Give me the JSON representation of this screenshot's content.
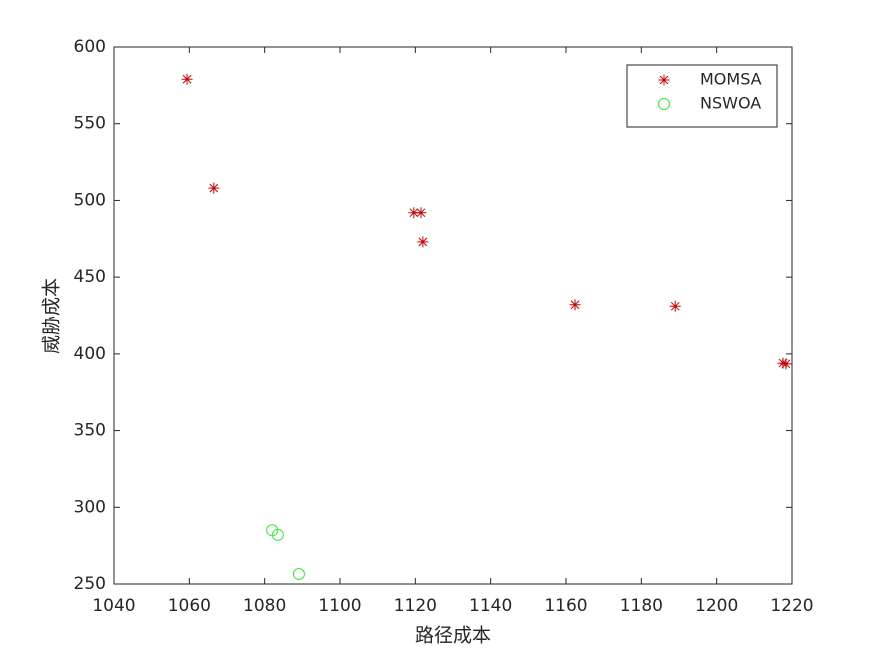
{
  "chart_data": {
    "type": "scatter",
    "xlabel": "路径成本",
    "ylabel": "威胁成本",
    "xlim": [
      1040,
      1220
    ],
    "xticks": [
      1040,
      1060,
      1080,
      1100,
      1120,
      1140,
      1160,
      1180,
      1200,
      1220
    ],
    "ylim": [
      250,
      600
    ],
    "yticks": [
      250,
      300,
      350,
      400,
      450,
      500,
      550,
      600
    ],
    "grid": false,
    "legend": "upper right",
    "series": [
      {
        "name": "MOMSA",
        "color": "#cc0000",
        "marker": "asterisk",
        "x": [
          1059.4,
          1066.5,
          1119.6,
          1121.5,
          1122,
          1162.4,
          1189,
          1217.6,
          1218.4
        ],
        "values": [
          579,
          508,
          492,
          492,
          473,
          432,
          431,
          394,
          393.5
        ]
      },
      {
        "name": "NSWOA",
        "color": "#33ee33",
        "marker": "circle",
        "x": [
          1082,
          1083.5,
          1089.1
        ],
        "values": [
          285,
          282,
          256.5
        ]
      }
    ]
  }
}
